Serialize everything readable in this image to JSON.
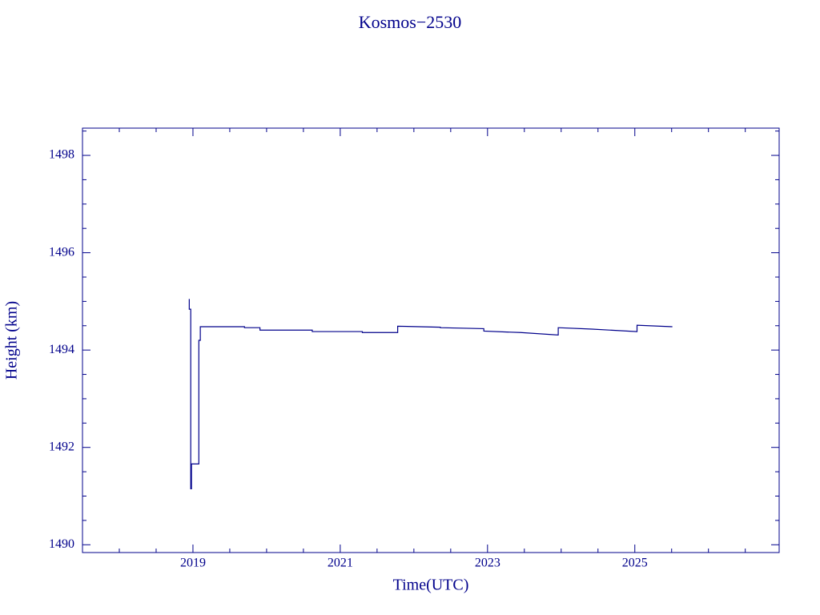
{
  "chart_data": {
    "type": "line",
    "title": "Kosmos−2530",
    "xlabel": "Time(UTC)",
    "ylabel": "Height (km)",
    "xlim": [
      2017.5,
      2026.96
    ],
    "ylim": [
      1489.84,
      1498.56
    ],
    "xticks": [
      2019,
      2021,
      2023,
      2025
    ],
    "xminorticks": [
      2017.5,
      2018,
      2018.5,
      2019.5,
      2020,
      2020.5,
      2021.5,
      2022,
      2022.5,
      2023.5,
      2024,
      2024.5,
      2025.5,
      2026,
      2026.5
    ],
    "yticks": [
      1490,
      1492,
      1494,
      1496,
      1498
    ],
    "yminorticks": [
      1490.5,
      1491,
      1491.5,
      1492.5,
      1493,
      1493.5,
      1494.5,
      1495,
      1495.5,
      1496.5,
      1497,
      1497.5,
      1498.5
    ],
    "color": "#00008b",
    "series": [
      {
        "color": "#00008b",
        "x": [
          2018.95,
          2018.95,
          2018.97,
          2018.97,
          2018.98,
          2018.98,
          2019.08,
          2019.08,
          2019.1,
          2019.1,
          2019.7,
          2019.7,
          2019.91,
          2019.91,
          2020.62,
          2020.62,
          2021.3,
          2021.3,
          2021.78,
          2021.78,
          2022.36,
          2022.36,
          2022.95,
          2022.95,
          2023.45,
          2023.96,
          2023.96,
          2024.42,
          2025.03,
          2025.03,
          2025.51
        ],
        "values": [
          1495.05,
          1494.84,
          1494.84,
          1491.15,
          1491.15,
          1491.66,
          1491.66,
          1494.2,
          1494.2,
          1494.48,
          1494.48,
          1494.46,
          1494.46,
          1494.41,
          1494.41,
          1494.38,
          1494.38,
          1494.36,
          1494.36,
          1494.49,
          1494.47,
          1494.46,
          1494.44,
          1494.39,
          1494.36,
          1494.31,
          1494.46,
          1494.43,
          1494.38,
          1494.51,
          1494.48
        ]
      }
    ]
  }
}
